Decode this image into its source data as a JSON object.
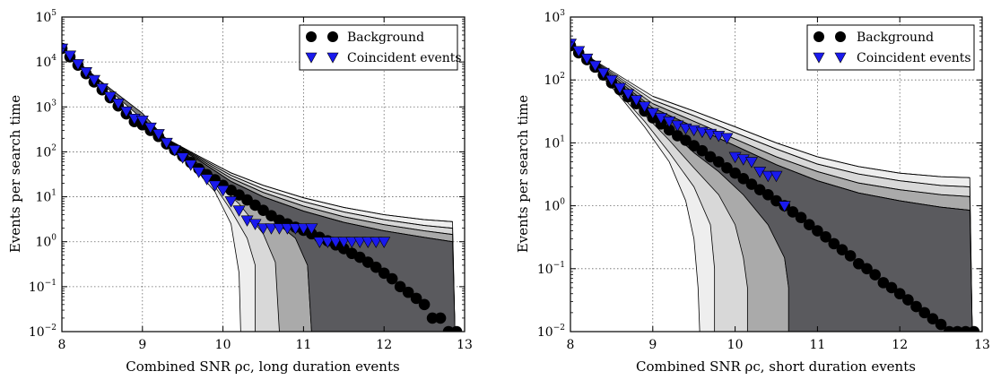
{
  "chart_data": [
    {
      "type": "scatter",
      "xlabel": "Combined SNR ρc, long duration events",
      "ylabel": "Events per search time",
      "xlim": [
        8,
        13
      ],
      "ylim": [
        0.01,
        100000
      ],
      "yscale": "log",
      "grid": true,
      "legend_position": "top-right",
      "xticks": [
        "8",
        "9",
        "10",
        "11",
        "12",
        "13"
      ],
      "yticks": [
        "10^-2",
        "10^-1",
        "10^0",
        "10^1",
        "10^2",
        "10^3",
        "10^4",
        "10^5"
      ],
      "band_colors": [
        "#eeeeee",
        "#d8d8d8",
        "#aaaaaa",
        "#7c7c7c",
        "#5a5a5e"
      ],
      "bands": [
        {
          "x": [
            8.0,
            8.5,
            9.0,
            9.3,
            9.6,
            9.9,
            10.1,
            10.2,
            10.22
          ],
          "y": [
            20000,
            3500,
            700,
            170,
            55,
            13,
            2.5,
            0.2,
            0.01
          ]
        },
        {
          "x": [
            8.0,
            8.5,
            9.0,
            9.3,
            9.6,
            9.9,
            10.1,
            10.3,
            10.4,
            10.4
          ],
          "y": [
            20000,
            3500,
            700,
            175,
            60,
            17,
            5.0,
            1.2,
            0.3,
            0.01
          ]
        },
        {
          "x": [
            8.0,
            8.5,
            9.0,
            9.3,
            9.6,
            9.9,
            10.2,
            10.5,
            10.65,
            10.7
          ],
          "y": [
            20000,
            3500,
            720,
            180,
            65,
            22,
            7.0,
            1.5,
            0.35,
            0.01
          ]
        },
        {
          "x": [
            8.0,
            8.5,
            9.0,
            9.3,
            9.6,
            9.9,
            10.2,
            10.5,
            10.9,
            11.05,
            11.1
          ],
          "y": [
            20000,
            3500,
            720,
            185,
            72,
            28,
            11,
            4.5,
            1.2,
            0.3,
            0.01
          ]
        }
      ],
      "upper_contours": [
        {
          "x": [
            9.3,
            9.7,
            10.1,
            10.5,
            11.0,
            11.5,
            12.0,
            12.5,
            12.85
          ],
          "y": [
            195,
            80,
            34,
            18,
            9.5,
            5.8,
            4.0,
            3.1,
            2.8
          ]
        },
        {
          "x": [
            9.3,
            9.7,
            10.1,
            10.5,
            11.0,
            11.5,
            12.0,
            12.5,
            12.85
          ],
          "y": [
            190,
            75,
            30,
            15,
            7.8,
            4.6,
            3.1,
            2.3,
            2.0
          ]
        },
        {
          "x": [
            9.3,
            9.7,
            10.1,
            10.5,
            11.0,
            11.5,
            12.0,
            12.5,
            12.85
          ],
          "y": [
            185,
            70,
            26,
            12.5,
            6.2,
            3.6,
            2.4,
            1.75,
            1.45
          ]
        },
        {
          "x": [
            9.3,
            9.7,
            10.1,
            10.5,
            11.0,
            11.5,
            12.0,
            12.5,
            12.85
          ],
          "y": [
            180,
            65,
            22,
            10,
            4.8,
            2.7,
            1.75,
            1.25,
            1.0
          ]
        }
      ],
      "series": [
        {
          "name": "Background",
          "marker": "circle",
          "color": "#000000",
          "x": [
            8.0,
            8.1,
            8.2,
            8.3,
            8.4,
            8.5,
            8.6,
            8.7,
            8.8,
            8.9,
            9.0,
            9.1,
            9.2,
            9.3,
            9.4,
            9.5,
            9.6,
            9.7,
            9.8,
            9.9,
            10.0,
            10.1,
            10.2,
            10.3,
            10.4,
            10.5,
            10.6,
            10.7,
            10.8,
            10.9,
            11.0,
            11.1,
            11.2,
            11.3,
            11.4,
            11.5,
            11.6,
            11.7,
            11.8,
            11.9,
            12.0,
            12.1,
            12.2,
            12.3,
            12.4,
            12.5,
            12.6,
            12.7,
            12.8,
            12.9
          ],
          "y": [
            20000,
            13000,
            8500,
            5500,
            3600,
            2400,
            1600,
            1050,
            700,
            470,
            400,
            300,
            220,
            150,
            110,
            80,
            58,
            42,
            31,
            24,
            18,
            14,
            11,
            8.5,
            6.5,
            5.0,
            3.8,
            3.0,
            2.5,
            2.1,
            1.8,
            1.5,
            1.25,
            1.05,
            0.85,
            0.7,
            0.55,
            0.45,
            0.35,
            0.27,
            0.2,
            0.15,
            0.1,
            0.075,
            0.055,
            0.04,
            0.02,
            0.02,
            0.01,
            0.01
          ]
        },
        {
          "name": "Coincident events",
          "marker": "triangle-down",
          "color": "#1a1aee",
          "x": [
            8.0,
            8.1,
            8.2,
            8.3,
            8.4,
            8.5,
            8.6,
            8.7,
            8.8,
            8.9,
            9.0,
            9.1,
            9.2,
            9.3,
            9.4,
            9.5,
            9.6,
            9.7,
            9.8,
            9.9,
            10.0,
            10.1,
            10.2,
            10.3,
            10.4,
            10.5,
            10.6,
            10.7,
            10.8,
            10.9,
            11.0,
            11.1,
            11.2,
            11.3,
            11.4,
            11.5,
            11.6,
            11.7,
            11.8,
            11.9,
            12.0
          ],
          "y": [
            20000,
            14000,
            9000,
            6000,
            4000,
            2600,
            1700,
            1200,
            800,
            550,
            500,
            350,
            250,
            160,
            110,
            75,
            52,
            36,
            25,
            18,
            14,
            8,
            5,
            3,
            2.5,
            2,
            2,
            2,
            2,
            2,
            2,
            2,
            1,
            1,
            1,
            1,
            1,
            1,
            1,
            1,
            1
          ]
        }
      ]
    },
    {
      "type": "scatter",
      "xlabel": "Combined SNR ρc, short duration events",
      "ylabel": "Events per search time",
      "xlim": [
        8,
        13
      ],
      "ylim": [
        0.01,
        1000
      ],
      "yscale": "log",
      "grid": true,
      "legend_position": "top-right",
      "xticks": [
        "8",
        "9",
        "10",
        "11",
        "12",
        "13"
      ],
      "yticks": [
        "10^-2",
        "10^-1",
        "10^0",
        "10^1",
        "10^2",
        "10^3"
      ],
      "band_colors": [
        "#eeeeee",
        "#d8d8d8",
        "#aaaaaa",
        "#7c7c7c",
        "#5a5a5e"
      ],
      "bands": [
        {
          "x": [
            8.0,
            8.3,
            8.6,
            8.9,
            9.2,
            9.4,
            9.5,
            9.55,
            9.57
          ],
          "y": [
            350,
            150,
            55,
            18,
            5.0,
            1.2,
            0.3,
            0.05,
            0.01
          ]
        },
        {
          "x": [
            8.0,
            8.3,
            8.6,
            8.9,
            9.2,
            9.5,
            9.7,
            9.75,
            9.75
          ],
          "y": [
            360,
            160,
            60,
            22,
            7.0,
            2.0,
            0.5,
            0.1,
            0.01
          ]
        },
        {
          "x": [
            8.0,
            8.3,
            8.6,
            8.9,
            9.2,
            9.5,
            9.8,
            10.0,
            10.1,
            10.15,
            10.15
          ],
          "y": [
            370,
            170,
            70,
            28,
            11,
            4.0,
            1.5,
            0.5,
            0.15,
            0.05,
            0.01
          ]
        },
        {
          "x": [
            8.0,
            8.3,
            8.6,
            8.9,
            9.2,
            9.5,
            9.8,
            10.1,
            10.4,
            10.6,
            10.65,
            10.65
          ],
          "y": [
            380,
            180,
            80,
            35,
            16,
            7.0,
            3.5,
            1.5,
            0.5,
            0.15,
            0.05,
            0.01
          ]
        }
      ],
      "upper_contours": [
        {
          "x": [
            9.0,
            9.5,
            10.0,
            10.5,
            11.0,
            11.5,
            12.0,
            12.5,
            12.85
          ],
          "y": [
            55,
            32,
            18,
            10,
            6.0,
            4.2,
            3.3,
            2.9,
            2.8
          ]
        },
        {
          "x": [
            9.0,
            9.5,
            10.0,
            10.5,
            11.0,
            11.5,
            12.0,
            12.5,
            12.85
          ],
          "y": [
            48,
            27,
            14.5,
            8.0,
            4.6,
            3.2,
            2.5,
            2.1,
            2.0
          ]
        },
        {
          "x": [
            9.0,
            9.5,
            10.0,
            10.5,
            11.0,
            11.5,
            12.0,
            12.5,
            12.85
          ],
          "y": [
            42,
            22,
            11.5,
            6.0,
            3.5,
            2.3,
            1.8,
            1.5,
            1.4
          ]
        },
        {
          "x": [
            9.0,
            9.5,
            10.0,
            10.5,
            11.0,
            11.5,
            12.0,
            12.5,
            12.85
          ],
          "y": [
            36,
            18,
            9.0,
            4.5,
            2.5,
            1.6,
            1.2,
            0.95,
            0.85
          ]
        }
      ],
      "series": [
        {
          "name": "Background",
          "marker": "circle",
          "color": "#000000",
          "x": [
            8.0,
            8.1,
            8.2,
            8.3,
            8.4,
            8.5,
            8.6,
            8.7,
            8.8,
            8.9,
            9.0,
            9.1,
            9.2,
            9.3,
            9.4,
            9.5,
            9.6,
            9.7,
            9.8,
            9.9,
            10.0,
            10.1,
            10.2,
            10.3,
            10.4,
            10.5,
            10.6,
            10.7,
            10.8,
            10.9,
            11.0,
            11.1,
            11.2,
            11.3,
            11.4,
            11.5,
            11.6,
            11.7,
            11.8,
            11.9,
            12.0,
            12.1,
            12.2,
            12.3,
            12.4,
            12.5,
            12.6,
            12.7,
            12.8,
            12.9
          ],
          "y": [
            350,
            270,
            210,
            160,
            120,
            90,
            70,
            54,
            42,
            32,
            25,
            20,
            16,
            13,
            11,
            9.0,
            7.5,
            6.0,
            5.0,
            4.0,
            3.3,
            2.7,
            2.2,
            1.8,
            1.5,
            1.2,
            1.0,
            0.8,
            0.65,
            0.5,
            0.4,
            0.32,
            0.25,
            0.2,
            0.16,
            0.12,
            0.1,
            0.08,
            0.06,
            0.05,
            0.04,
            0.032,
            0.025,
            0.02,
            0.016,
            0.013,
            0.01,
            0.01,
            0.01,
            0.01
          ]
        },
        {
          "name": "Coincident events",
          "marker": "triangle-down",
          "color": "#1a1aee",
          "x": [
            8.0,
            8.1,
            8.2,
            8.3,
            8.4,
            8.5,
            8.6,
            8.7,
            8.8,
            8.9,
            9.0,
            9.1,
            9.2,
            9.3,
            9.4,
            9.5,
            9.6,
            9.7,
            9.8,
            9.9,
            10.0,
            10.1,
            10.2,
            10.3,
            10.4,
            10.5,
            10.6
          ],
          "y": [
            380,
            290,
            220,
            170,
            130,
            100,
            75,
            60,
            48,
            38,
            30,
            25,
            22,
            19,
            17,
            16,
            15,
            14,
            13,
            12,
            6.0,
            5.5,
            5.0,
            3.5,
            3.0,
            3.0,
            1.0
          ]
        }
      ]
    }
  ],
  "panels": [
    {
      "legend": [
        {
          "label": "Background"
        },
        {
          "label": "Coincident events"
        }
      ]
    },
    {
      "legend": [
        {
          "label": "Background"
        },
        {
          "label": "Coincident events"
        }
      ]
    }
  ]
}
